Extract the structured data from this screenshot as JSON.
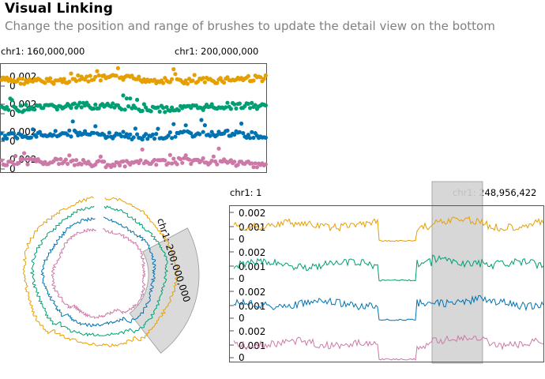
{
  "header": {
    "title": "Visual Linking",
    "subtitle": "Change the position and range of brushes to update the detail view on the bottom"
  },
  "top_view": {
    "start_label": "chr1: 160,000,000",
    "end_label": "chr1: 200,000,000",
    "tick_labels": [
      "0.002",
      "0"
    ]
  },
  "circular_view": {
    "brush_label": "chr1: 200,000,000"
  },
  "detail_view": {
    "start_label": "chr1: 1",
    "end_label": "chr1: 248,956,422",
    "tick_labels": [
      "0.002",
      "0.001",
      "0"
    ]
  },
  "colors": {
    "series": [
      "#e69f00",
      "#009e73",
      "#0072b2",
      "#cc79a7"
    ],
    "brush": "#d3d3d3",
    "subtitle": "#808080"
  },
  "chart_data": [
    {
      "type": "scatter",
      "series_count": 4,
      "y_ticks": [
        "0.002",
        "0"
      ],
      "x_range": [
        "chr1: 160,000,000",
        "chr1: 200,000,000"
      ]
    },
    {
      "type": "line",
      "layout": "circular",
      "series_count": 4
    },
    {
      "type": "line",
      "series_count": 4,
      "y_ticks": [
        "0.002",
        "0.001",
        "0"
      ],
      "x_range": [
        "chr1: 1",
        "chr1: 248,956,422"
      ]
    }
  ]
}
